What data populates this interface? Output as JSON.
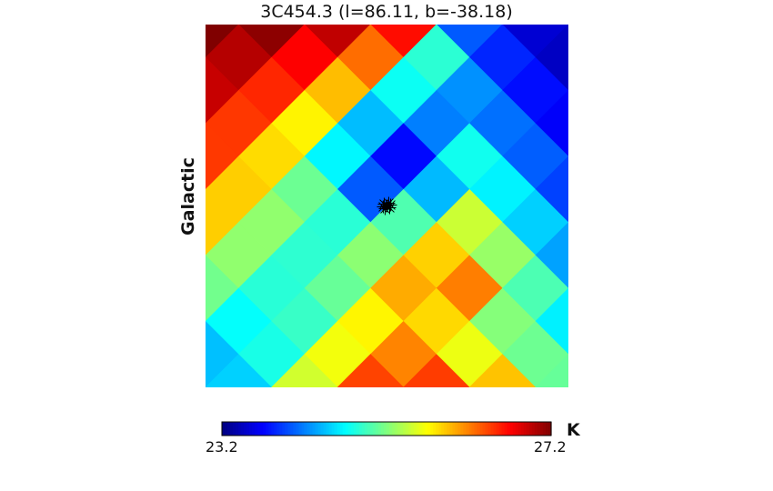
{
  "chart_data": {
    "type": "heatmap",
    "title": "3C454.3 (l=86.11, b=-38.18)",
    "ylabel": "Galactic",
    "xlabel": "",
    "colorbar": {
      "min": 23.2,
      "max": 27.2,
      "unit": "K",
      "colormap": "jet",
      "orientation": "horizontal",
      "placement": "bottom"
    },
    "grid": false,
    "marker": {
      "symbol": "star",
      "color": "#000000",
      "position": "center"
    },
    "diamond_grid_values": [
      [
        27.2,
        27.2,
        27.0,
        26.9,
        26.6,
        24.1,
        23.6,
        23.4
      ],
      [
        27.0,
        26.8,
        26.5,
        26.2,
        24.8,
        24.2,
        23.8,
        23.5
      ],
      [
        26.7,
        26.3,
        25.6,
        24.4,
        23.8,
        24.6,
        24.0,
        23.7
      ],
      [
        26.3,
        25.8,
        25.1,
        23.9,
        23.5,
        25.0,
        24.4,
        23.9
      ],
      [
        25.8,
        25.3,
        24.9,
        25.0,
        25.4,
        25.7,
        24.8,
        24.2
      ],
      [
        25.2,
        24.9,
        24.8,
        25.3,
        26.2,
        26.4,
        25.3,
        24.5
      ],
      [
        24.6,
        24.6,
        25.0,
        25.8,
        26.0,
        25.3,
        25.0,
        24.7
      ],
      [
        24.2,
        24.7,
        25.6,
        26.4,
        26.6,
        26.3,
        25.8,
        25.1
      ]
    ]
  }
}
